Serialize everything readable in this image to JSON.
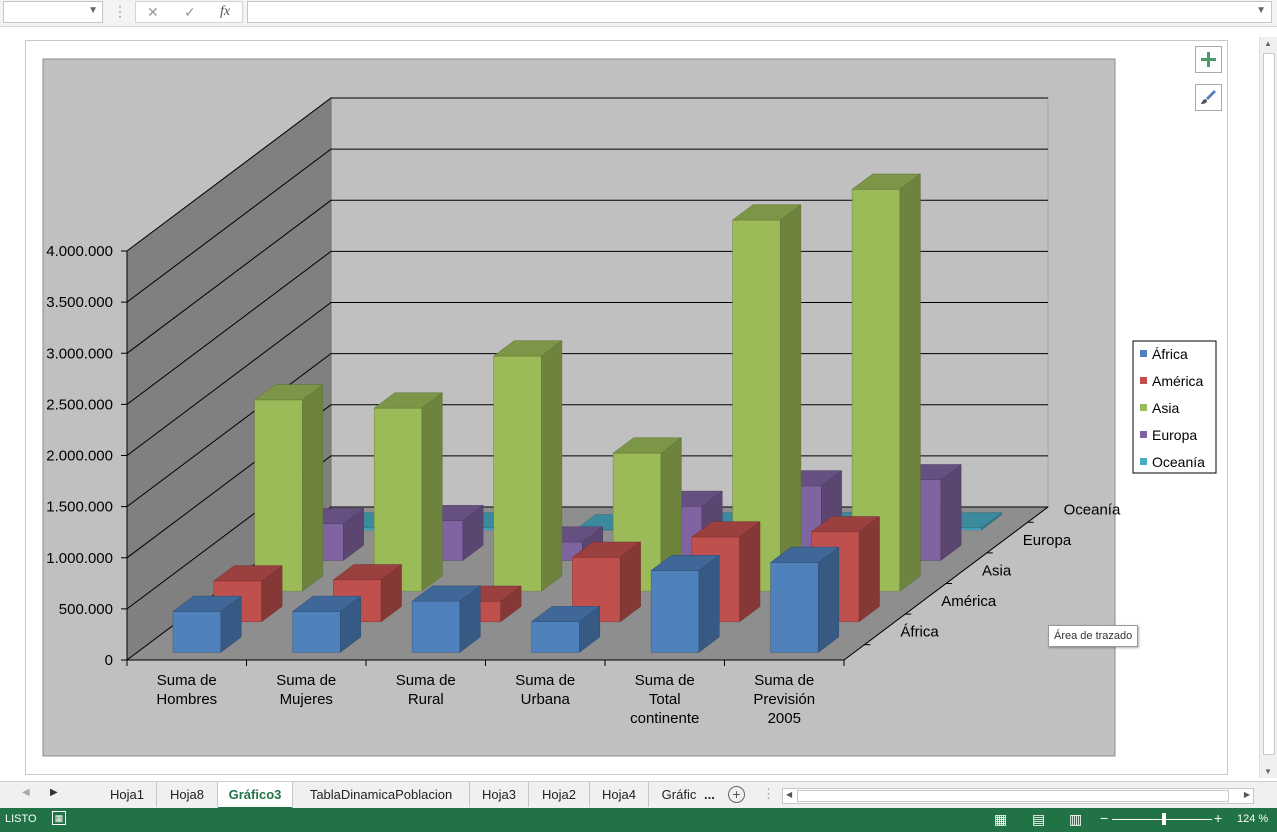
{
  "formula_bar": {
    "name_box": "",
    "cancel_icon": "✕",
    "enter_icon": "✓",
    "fx_label": "fx",
    "formula": ""
  },
  "chart_data": {
    "type": "bar",
    "categories": [
      "Suma de Hombres",
      "Suma de Mujeres",
      "Suma de Rural",
      "Suma de Urbana",
      "Suma de Total continente",
      "Suma de Previsión 2005"
    ],
    "category_lines": [
      [
        "Suma de",
        "Hombres"
      ],
      [
        "Suma de",
        "Mujeres"
      ],
      [
        "Suma de",
        "Rural"
      ],
      [
        "Suma de",
        "Urbana"
      ],
      [
        "Suma de",
        "Total",
        "continente"
      ],
      [
        "Suma de",
        "Previsión",
        "2005"
      ]
    ],
    "series": [
      {
        "name": "África",
        "color": "#4f81bd",
        "values": [
          400000,
          400000,
          500000,
          300000,
          800000,
          880000
        ]
      },
      {
        "name": "América",
        "color": "#c0504d",
        "values": [
          400000,
          410000,
          200000,
          630000,
          830000,
          880000
        ]
      },
      {
        "name": "Asia",
        "color": "#9bbb59",
        "values": [
          1870000,
          1790000,
          2300000,
          1350000,
          3630000,
          3930000
        ]
      },
      {
        "name": "Europa",
        "color": "#8064a2",
        "values": [
          360000,
          390000,
          180000,
          530000,
          730000,
          790000
        ]
      },
      {
        "name": "Oceanía",
        "color": "#4bacc6",
        "values": [
          20000,
          20000,
          0,
          20000,
          20000,
          20000
        ]
      }
    ],
    "depth_labels": [
      "África",
      "América",
      "Asia",
      "Europa",
      "Oceanía"
    ],
    "y_ticks": [
      "0",
      "500.000",
      "1.000.000",
      "1.500.000",
      "2.000.000",
      "2.500.000",
      "3.000.000",
      "3.500.000",
      "4.000.000"
    ],
    "ylim": [
      0,
      4000000
    ],
    "legend": [
      "África",
      "América",
      "Asia",
      "Europa",
      "Oceanía"
    ],
    "legend_position": "right",
    "grid": true,
    "title": ""
  },
  "tooltip": "Área de trazado",
  "sheet_tabs": [
    "Hoja1",
    "Hoja8",
    "Gráfico3",
    "TablaDinamicaPoblacion",
    "Hoja3",
    "Hoja2",
    "Hoja4",
    "Gráfic"
  ],
  "active_tab": "Gráfico3",
  "tab_more": "...",
  "status": {
    "mode": "LISTO",
    "zoom": "124 %"
  },
  "icons": {
    "add_element": "plus-icon",
    "style": "brush-icon",
    "add_sheet": "add-sheet-icon"
  }
}
